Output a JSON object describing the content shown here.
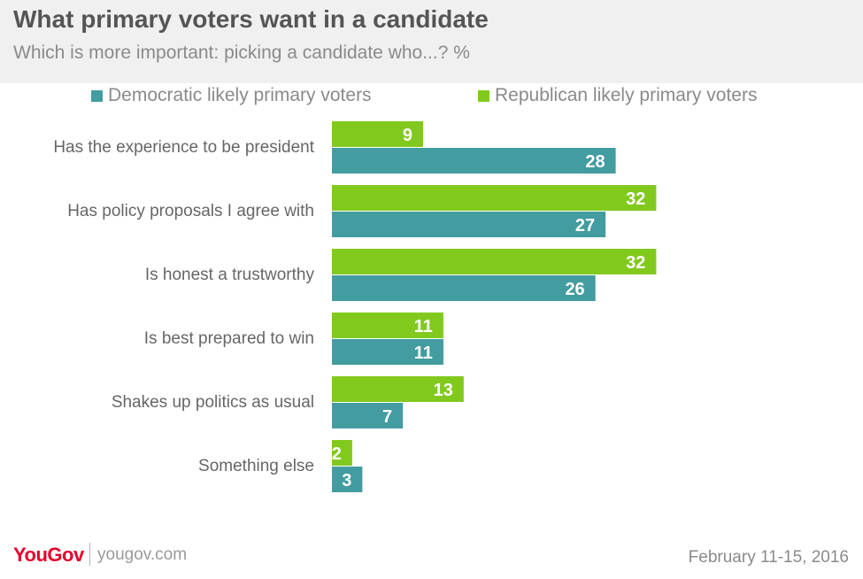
{
  "title": "What primary voters want in a candidate",
  "subtitle": "Which is more important: picking a candidate who...?  %",
  "brand": {
    "logo_text": "YouGov",
    "url": "yougov.com"
  },
  "date": "February 11-15, 2016",
  "colors": {
    "democratic": "#439c9f",
    "republican": "#82c91e",
    "logo": "#e4002b"
  },
  "chart_data": {
    "type": "bar",
    "orientation": "horizontal",
    "categories": [
      "Has the experience to be president",
      "Has policy proposals I agree with",
      "Is honest a trustworthy",
      "Is best prepared to win",
      "Shakes up politics as usual",
      "Something else"
    ],
    "series": [
      {
        "name": "Democratic likely primary voters",
        "color": "#439c9f",
        "values": [
          28,
          27,
          26,
          11,
          7,
          3
        ]
      },
      {
        "name": "Republican likely primary voters",
        "color": "#82c91e",
        "values": [
          9,
          32,
          32,
          11,
          13,
          2
        ]
      }
    ],
    "xlim": [
      0,
      50
    ],
    "legend_position": "top",
    "grid": false,
    "data_labels": true
  }
}
